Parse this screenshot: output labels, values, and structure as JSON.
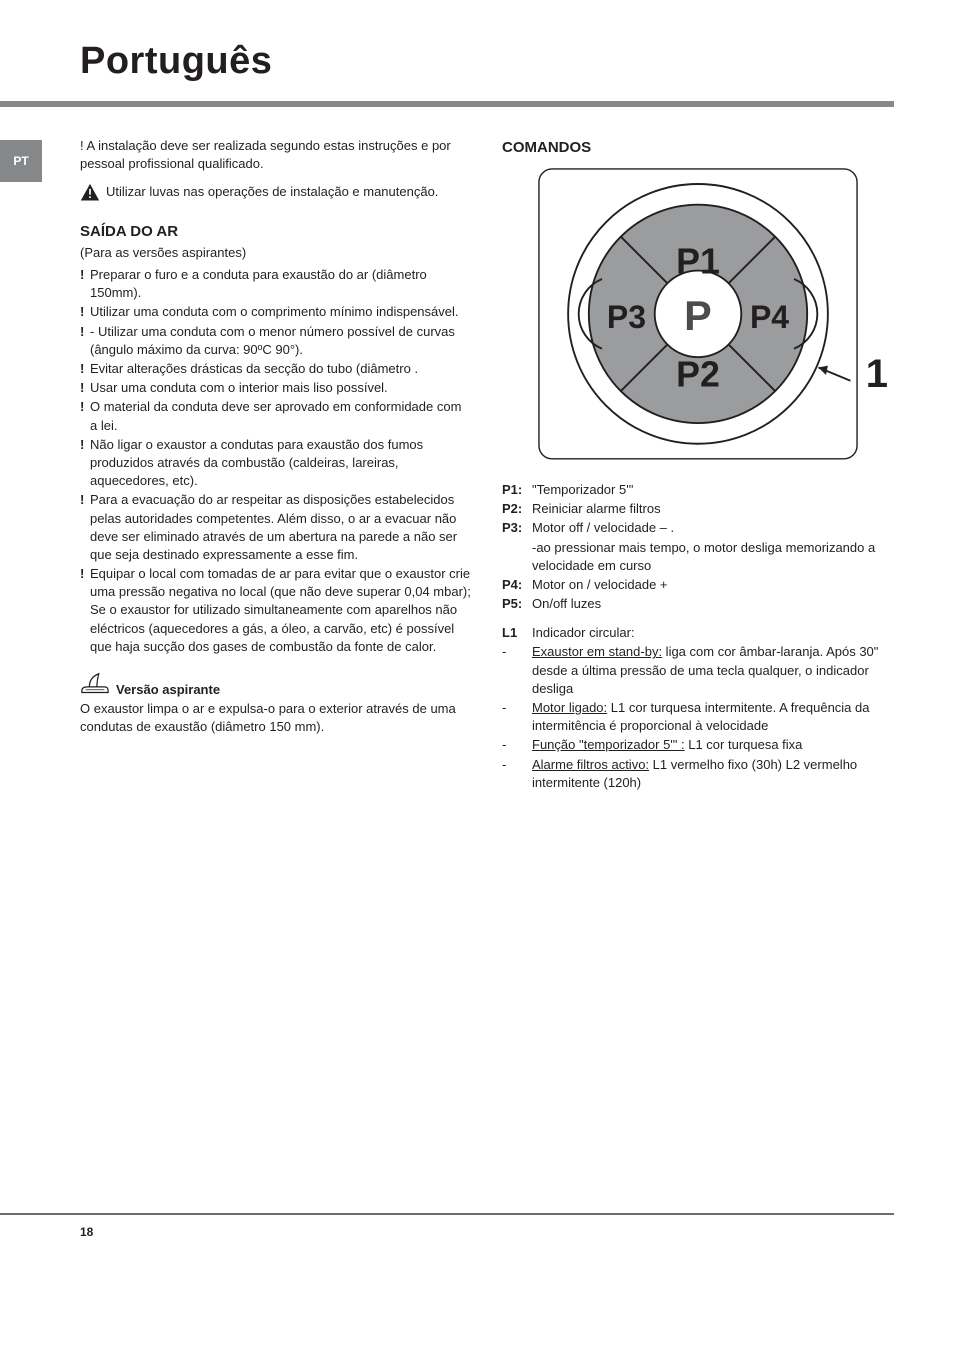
{
  "lang_code": "PT",
  "title": "Português",
  "intro_line": "! A instalação deve ser realizada segundo estas instruções e por pessoal profissional qualificado.",
  "warn_text": "Utilizar luvas nas operações de instalação e manutenção.",
  "section_saida": "SAÍDA DO AR",
  "saida_sub": "(Para as versões aspirantes)",
  "bang_items": [
    "Preparar o furo e a conduta para exaustão do ar (diâmetro 150mm).",
    "Utilizar uma conduta com o comprimento mínimo indispensável.",
    "- Utilizar uma conduta com o menor número possível de curvas (ângulo máximo da curva: 90ºC 90°).",
    "Evitar alterações drásticas da secção do tubo (diâmetro .",
    "Usar uma conduta com o interior mais liso possível.",
    "O material da conduta deve ser aprovado em conformidade com a lei.",
    "Não ligar o exaustor a condutas para exaustão dos fumos produzidos através da combustão (caldeiras, lareiras, aquecedores, etc).",
    "Para a evacuação do ar respeitar as disposições estabelecidos pelas autoridades competentes. Além disso, o ar a evacuar não deve ser eliminado através de um abertura na parede a não ser que seja destinado expressamente a esse fim.",
    "Equipar o local com tomadas de ar para evitar que o exaustor crie uma pressão negativa no local (que não deve superar 0,04 mbar); Se o exaustor for utilizado simultaneamente com aparelhos não eléctricos (aquecedores a gás, a óleo, a carvão, etc) é possível que haja sucção dos gases de combustão da fonte de calor."
  ],
  "versao_title": "Versão aspirante",
  "versao_text": "O exaustor limpa o ar e expulsa-o para o exterior através de uma condutas de exaustão (diâmetro 150 mm).",
  "comandos_h": "COMANDOS",
  "dial": {
    "labels": {
      "top": "P1",
      "bottom": "P2",
      "left": "P3",
      "right": "P4",
      "center": "P"
    },
    "arrow_label": "1",
    "colors": {
      "outer_stroke": "#231f20",
      "gray_fill": "#9b9c9e",
      "inner_fill": "#ffffff",
      "text": "#231f20",
      "center_text": "#4d4d4f"
    },
    "font_big": 38,
    "font_center": 44
  },
  "p_defs": [
    {
      "k": "P1:",
      "v": "\"Temporizador 5'\""
    },
    {
      "k": "P2:",
      "v": "Reiniciar alarme filtros"
    },
    {
      "k": "P3:",
      "v": "Motor off / velocidade – .\n-ao pressionar mais tempo, o motor desliga memorizando a velocidade em curso"
    },
    {
      "k": "P4:",
      "v": "Motor on / velocidade +"
    },
    {
      "k": "P5:",
      "v": "On/off luzes"
    }
  ],
  "l1_key": "L1",
  "l1_text": "Indicador circular:",
  "l1_items": [
    {
      "u": "Exaustor em stand-by:",
      "t": " liga com cor âmbar-laranja. Após 30\" desde a última pressão de uma tecla qualquer, o indicador desliga"
    },
    {
      "u": "Motor ligado:",
      "t": " L1 cor turquesa intermitente. A frequência da intermitência é proporcional à velocidade"
    },
    {
      "u": "Função \"temporizador 5'\" :",
      "t": " L1 cor turquesa fixa"
    },
    {
      "u": "Alarme filtros activo:",
      "t": " L1 vermelho fixo (30h) L2 vermelho intermitente (120h)"
    }
  ],
  "page_num": "18"
}
